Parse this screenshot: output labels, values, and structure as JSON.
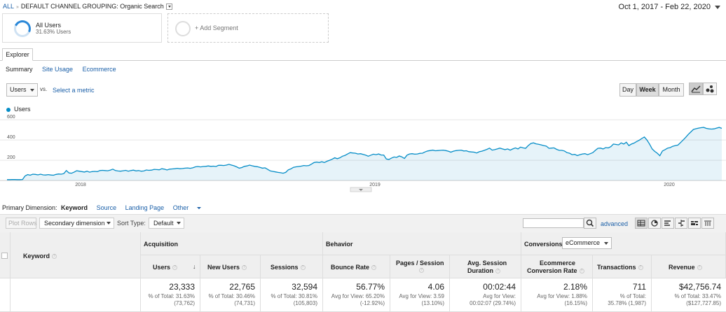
{
  "breadcrumb": {
    "root": "ALL",
    "separator": "»",
    "current": "DEFAULT CHANNEL GROUPING: Organic Search"
  },
  "date_range": "Oct 1, 2017 - Feb 22, 2020",
  "segments": {
    "active": {
      "title": "All Users",
      "subtitle": "31.63% Users",
      "percent": 31.63
    },
    "add_label": "+ Add Segment"
  },
  "tabs": {
    "explorer": "Explorer",
    "subtabs": [
      "Summary",
      "Site Usage",
      "Ecommerce"
    ]
  },
  "metric_controls": {
    "metric": "Users",
    "vs": "vs.",
    "select_metric": "Select a metric",
    "granularity": [
      "Day",
      "Week",
      "Month"
    ],
    "active_granularity": "Week"
  },
  "chart_data": {
    "type": "area",
    "series": [
      {
        "name": "Users",
        "color": "#058dc7",
        "values": [
          8,
          8,
          9,
          9,
          8,
          8,
          10,
          45,
          58,
          52,
          62,
          60,
          55,
          62,
          55,
          54,
          58,
          54,
          52,
          60,
          64,
          62,
          68,
          98,
          75,
          72,
          82,
          96,
          92,
          88,
          84,
          92,
          82,
          88,
          90,
          88,
          98,
          100,
          98,
          96,
          102,
          112,
          98,
          94,
          92,
          96,
          100,
          92,
          98,
          102,
          95,
          98,
          92,
          94,
          104,
          100,
          102,
          110,
          108,
          106,
          116,
          112,
          104,
          112,
          114,
          116,
          120,
          116,
          118,
          122,
          124,
          120,
          125,
          135,
          138,
          134,
          138,
          140,
          144,
          140,
          142,
          138,
          150,
          150,
          148,
          152,
          160,
          152,
          145,
          135,
          122,
          128,
          140,
          144,
          152,
          145,
          140,
          136,
          130,
          122,
          125,
          110,
          95,
          90,
          85,
          80,
          77,
          72,
          80,
          105,
          115,
          130,
          135,
          138,
          142,
          148,
          145,
          148,
          162,
          178,
          182,
          178,
          185,
          178,
          190,
          200,
          210,
          225,
          215,
          225,
          240,
          248,
          262,
          275,
          272,
          270,
          262,
          265,
          258,
          250,
          240,
          250,
          260,
          255,
          262,
          252,
          252,
          212,
          208,
          222,
          232,
          228,
          242,
          234,
          218,
          250,
          262,
          265,
          260,
          262,
          268,
          270,
          282,
          292,
          296,
          300,
          294,
          296,
          298,
          300,
          296,
          290,
          280,
          290,
          295,
          298,
          300,
          292,
          294,
          285,
          282,
          280,
          272,
          284,
          290,
          298,
          308,
          320,
          300,
          305,
          312,
          320,
          312,
          305,
          312,
          300,
          312,
          322,
          312,
          330,
          322,
          318,
          345,
          366,
          372,
          362,
          358,
          352,
          345,
          340,
          318,
          320,
          322,
          308,
          298,
          298,
          292,
          275,
          270,
          255,
          258,
          246,
          255,
          262,
          265,
          255,
          265,
          275,
          298,
          318,
          320,
          312,
          325,
          322,
          335,
          360,
          356,
          352,
          372,
          360,
          378,
          345,
          360,
          370,
          385,
          398,
          415,
          430,
          400,
          360,
          312,
          288,
          270,
          245,
          292,
          305,
          320,
          325,
          338,
          345,
          350,
          375,
          400,
          426,
          455,
          480,
          505,
          512,
          518,
          522,
          525,
          515,
          510,
          508,
          510,
          518,
          525,
          515
        ]
      }
    ],
    "x_tick_labels": [
      "2018",
      "2019",
      "2020"
    ],
    "y_tick_labels": [
      "200",
      "400",
      "600"
    ],
    "ylim": [
      0,
      650
    ],
    "grid": true,
    "legend": "top-left"
  },
  "primary_dimension": {
    "label": "Primary Dimension:",
    "options": [
      "Keyword",
      "Source",
      "Landing Page",
      "Other"
    ],
    "active": "Keyword"
  },
  "toolbar": {
    "plot_rows": "Plot Rows",
    "secondary_dimension": "Secondary dimension",
    "sort_type_label": "Sort Type:",
    "sort_type_value": "Default",
    "search_placeholder": "",
    "advanced": "advanced"
  },
  "table": {
    "keyword_header": "Keyword",
    "groups": {
      "acquisition": "Acquisition",
      "behavior": "Behavior",
      "conversions": "Conversions",
      "conversion_type": "eCommerce"
    },
    "columns": [
      {
        "label": "Users",
        "value": "23,333",
        "sub1": "% of Total: 31.63%",
        "sub2": "(73,762)"
      },
      {
        "label": "New Users",
        "value": "22,765",
        "sub1": "% of Total: 30.46%",
        "sub2": "(74,731)"
      },
      {
        "label": "Sessions",
        "value": "32,594",
        "sub1": "% of Total: 30.81%",
        "sub2": "(105,803)"
      },
      {
        "label": "Bounce Rate",
        "value": "56.77%",
        "sub1": "Avg for View: 65.20%",
        "sub2": "(-12.92%)"
      },
      {
        "label": "Pages / Session",
        "value": "4.06",
        "sub1": "Avg for View: 3.59",
        "sub2": "(13.10%)"
      },
      {
        "label": "Avg. Session Duration",
        "value": "00:02:44",
        "sub1": "Avg for View:",
        "sub2": "00:02:07 (29.74%)"
      },
      {
        "label": "Ecommerce Conversion Rate",
        "value": "2.18%",
        "sub1": "Avg for View: 1.88%",
        "sub2": "(16.15%)"
      },
      {
        "label": "Transactions",
        "value": "711",
        "sub1": "% of Total:",
        "sub2": "35.78% (1,987)"
      },
      {
        "label": "Revenue",
        "value": "$42,756.74",
        "sub1": "% of Total: 33.47%",
        "sub2": "($127,727.85)"
      }
    ],
    "column_labels_split": {
      "pages_session": [
        "Pages / Session",
        ""
      ],
      "avg_duration": [
        "Avg. Session",
        "Duration"
      ],
      "ecom_rate": [
        "Ecommerce",
        "Conversion Rate"
      ]
    }
  }
}
